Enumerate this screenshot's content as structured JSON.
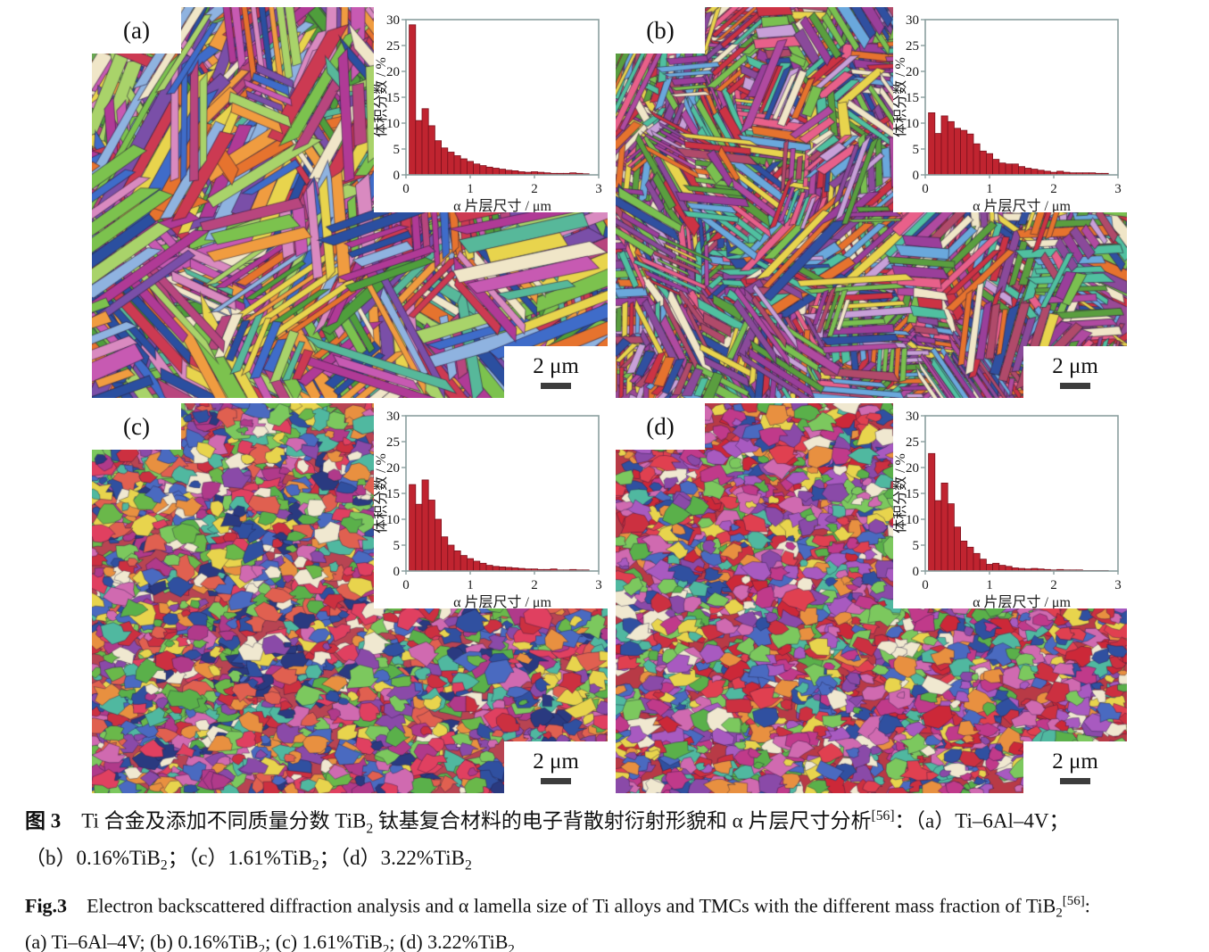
{
  "figure": {
    "panels": [
      {
        "id": "a",
        "label": "(a)",
        "scale_label": "2 μm",
        "texture": {
          "style": "laths",
          "seed": 11,
          "background": "#6aaa52",
          "clusters": 260,
          "len": [
            60,
            175
          ],
          "wid": [
            7,
            16
          ],
          "angles": [
            -65,
            -40,
            25,
            55,
            85,
            -20
          ],
          "colors": [
            "#4f9e3c",
            "#7cc24e",
            "#a9d36a",
            "#2b4fa0",
            "#3f6cc9",
            "#e6732e",
            "#f09c40",
            "#b03a96",
            "#c75ab2",
            "#7a4fa8",
            "#57b89a",
            "#e8d44d",
            "#f0e6c8",
            "#cc3a52",
            "#8fb3e0",
            "#d98ac0",
            "#b8467e"
          ]
        }
      },
      {
        "id": "b",
        "label": "(b)",
        "scale_label": "2 μm",
        "texture": {
          "style": "laths",
          "seed": 23,
          "background": "#9a4a96",
          "clusters": 430,
          "len": [
            26,
            95
          ],
          "wid": [
            4,
            10
          ],
          "angles": [
            -70,
            -40,
            0,
            30,
            60,
            90
          ],
          "colors": [
            "#9a3f9a",
            "#b04aa0",
            "#8a4a9a",
            "#7ac050",
            "#5a9e3f",
            "#e8608a",
            "#50c0a0",
            "#3050a0",
            "#cc3344",
            "#e8d44d",
            "#e6732e",
            "#c8a0d8",
            "#f0e6c8",
            "#6aa8dc",
            "#b04a6a"
          ]
        }
      },
      {
        "id": "c",
        "label": "(c)",
        "scale_label": "2 μm",
        "texture": {
          "style": "blobs",
          "seed": 37,
          "background": "#b84452",
          "count": 2800,
          "rad": [
            4,
            13
          ],
          "colors": [
            "#cc3040",
            "#e06050",
            "#3050a0",
            "#4a6ac0",
            "#5ab04a",
            "#7cc85e",
            "#b03a8a",
            "#8a4aa8",
            "#e89040",
            "#50b8a0",
            "#e8d44d",
            "#f0e8d0",
            "#d06ab0",
            "#2a3a80",
            "#e04060",
            "#6ab84a"
          ]
        }
      },
      {
        "id": "d",
        "label": "(d)",
        "scale_label": "2 μm",
        "texture": {
          "style": "blobs",
          "seed": 53,
          "background": "#b83a46",
          "count": 2800,
          "rad": [
            4,
            13
          ],
          "colors": [
            "#cc2838",
            "#e04050",
            "#5ab04a",
            "#7cc85e",
            "#3050a0",
            "#4a6ac0",
            "#8a4aa8",
            "#a85ac0",
            "#50b8a0",
            "#e89040",
            "#e8d44d",
            "#f0e8d0",
            "#d06ab0",
            "#c03a8a",
            "#cc3040"
          ]
        }
      }
    ],
    "captions": {
      "zh_line1": [
        {
          "t": "图 3",
          "style": "b"
        },
        {
          "t": "　Ti 合金及添加不同质量分数 TiB"
        },
        {
          "t": "2",
          "style": "sub"
        },
        {
          "t": " 钛基复合材料的电子背散射衍射形貌和 α 片层尺寸分析"
        },
        {
          "t": "[56]",
          "style": "sup"
        },
        {
          "t": "：（a）Ti–6Al–4V；"
        }
      ],
      "zh_line2": [
        {
          "t": "（b）0.16%TiB"
        },
        {
          "t": "2",
          "style": "sub"
        },
        {
          "t": "；（c）1.61%TiB"
        },
        {
          "t": "2",
          "style": "sub"
        },
        {
          "t": "；（d）3.22%TiB"
        },
        {
          "t": "2",
          "style": "sub"
        }
      ],
      "en_line1": [
        {
          "t": "Fig.3",
          "style": "b"
        },
        {
          "t": "　Electron backscattered diffraction analysis and α lamella size of Ti alloys and TMCs with the different mass fraction of TiB"
        },
        {
          "t": "2",
          "style": "sub"
        },
        {
          "t": "[56]",
          "style": "sup"
        },
        {
          "t": ":"
        }
      ],
      "en_line2": [
        {
          "t": "(a) Ti–6Al–4V; (b) 0.16%TiB"
        },
        {
          "t": "2",
          "style": "sub"
        },
        {
          "t": "; (c) 1.61%TiB"
        },
        {
          "t": "2",
          "style": "sub"
        },
        {
          "t": "; (d) 3.22%TiB"
        },
        {
          "t": "2",
          "style": "sub"
        }
      ]
    }
  },
  "chart_data": [
    {
      "type": "bar",
      "panel": "a",
      "title": "",
      "xlabel": "α 片层尺寸 / μm",
      "ylabel": "体积分数 / %",
      "xlim": [
        0,
        3
      ],
      "ylim": [
        0,
        30
      ],
      "xticks": [
        0,
        1,
        2,
        3
      ],
      "yticks": [
        0,
        5,
        10,
        15,
        20,
        25,
        30
      ],
      "bin_start": 0.1,
      "bin_width": 0.1,
      "grid": false,
      "legend": "none",
      "values": [
        29,
        10.5,
        12.8,
        9.5,
        6.6,
        5.2,
        4.4,
        3.7,
        3.1,
        2.6,
        2.1,
        1.8,
        1.5,
        1.3,
        1.1,
        0.9,
        0.8,
        0.6,
        0.5,
        0.6,
        0.5,
        0.4,
        0.3,
        0.3,
        0.3,
        0.4,
        0.3,
        0.2
      ]
    },
    {
      "type": "bar",
      "panel": "b",
      "title": "",
      "xlabel": "α 片层尺寸 / μm",
      "ylabel": "体积分数 / %",
      "xlim": [
        0,
        3
      ],
      "ylim": [
        0,
        30
      ],
      "xticks": [
        0,
        1,
        2,
        3
      ],
      "yticks": [
        0,
        5,
        10,
        15,
        20,
        25,
        30
      ],
      "bin_start": 0.1,
      "bin_width": 0.1,
      "grid": false,
      "legend": "none",
      "values": [
        12,
        8,
        11.4,
        10.3,
        9,
        8.6,
        7.9,
        6,
        4.6,
        4.1,
        3,
        2.3,
        2.1,
        2.1,
        1.6,
        1.3,
        1.1,
        0.9,
        0.7,
        0.5,
        0.7,
        0.5,
        0.4,
        0.4,
        0.4,
        0.4,
        0.3,
        0.3
      ]
    },
    {
      "type": "bar",
      "panel": "c",
      "title": "",
      "xlabel": "α 片层尺寸 / μm",
      "ylabel": "体积分数 / %",
      "xlim": [
        0,
        3
      ],
      "ylim": [
        0,
        30
      ],
      "xticks": [
        0,
        1,
        2,
        3
      ],
      "yticks": [
        0,
        5,
        10,
        15,
        20,
        25,
        30
      ],
      "bin_start": 0.1,
      "bin_width": 0.1,
      "grid": false,
      "legend": "none",
      "values": [
        16.7,
        12.9,
        17.6,
        13.7,
        10,
        6.6,
        5,
        3.9,
        3,
        2.4,
        1.9,
        1.5,
        1.1,
        0.9,
        0.8,
        0.7,
        0.6,
        0.5,
        0.4,
        0.4,
        0.3,
        0.3,
        0.4,
        0.2,
        0.2,
        0.3,
        0.2,
        0.2
      ]
    },
    {
      "type": "bar",
      "panel": "d",
      "title": "",
      "xlabel": "α 片层尺寸 / μm",
      "ylabel": "体积分数 / %",
      "xlim": [
        0,
        3
      ],
      "ylim": [
        0,
        30
      ],
      "xticks": [
        0,
        1,
        2,
        3
      ],
      "yticks": [
        0,
        5,
        10,
        15,
        20,
        25,
        30
      ],
      "bin_start": 0.1,
      "bin_width": 0.1,
      "grid": false,
      "legend": "none",
      "values": [
        22.7,
        13.6,
        17,
        13,
        8.5,
        5.8,
        4.6,
        3.4,
        2.3,
        1.3,
        1.5,
        1.1,
        0.9,
        0.6,
        0.5,
        0.4,
        0.5,
        0.4,
        0.3,
        0.2,
        0.3,
        0.2,
        0.2,
        0.2,
        0.1,
        0.1,
        0.1,
        0.1
      ]
    }
  ],
  "colors": {
    "bar_fill": "#c02430",
    "bar_edge": "#7c101c",
    "axis": "#8a9e9e",
    "tick_text": "#1a1a1a",
    "scalebar": "#3c3c3c",
    "text": "#111111"
  }
}
